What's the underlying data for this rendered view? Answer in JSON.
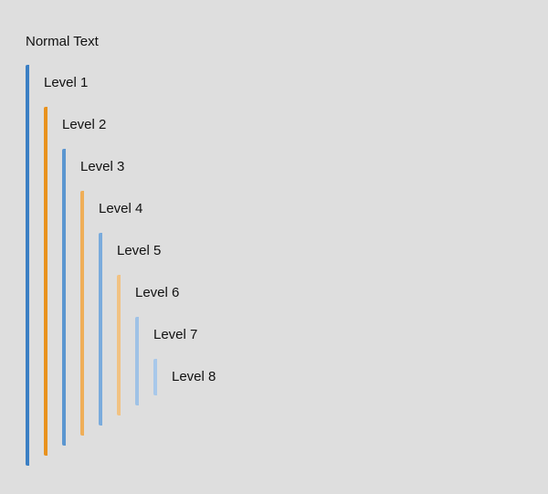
{
  "normal_text": "Normal Text",
  "levels": [
    {
      "label": "Level 1",
      "color": "#3b7fc4"
    },
    {
      "label": "Level 2",
      "color": "#e8921e"
    },
    {
      "label": "Level 3",
      "color": "#5b96d0"
    },
    {
      "label": "Level 4",
      "color": "#efae58"
    },
    {
      "label": "Level 5",
      "color": "#7aabdc"
    },
    {
      "label": "Level 6",
      "color": "#f1c283"
    },
    {
      "label": "Level 7",
      "color": "#9fc2e6"
    },
    {
      "label": "Level 8",
      "color": "#a8c8ea"
    }
  ]
}
